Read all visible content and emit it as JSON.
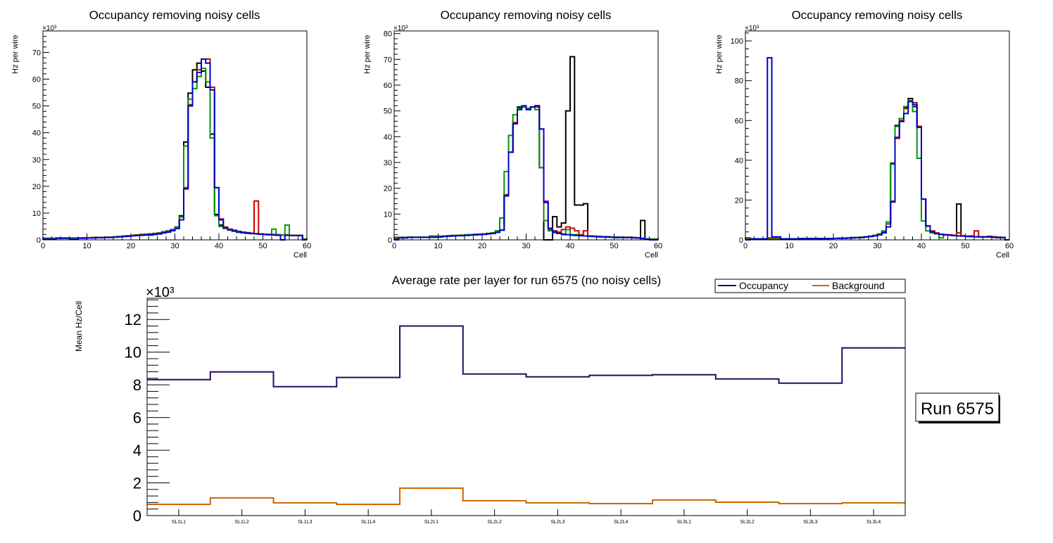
{
  "chart_data": [
    {
      "type": "line",
      "style": "step-histogram",
      "title": "Occupancy removing noisy cells",
      "xlabel": "Cell",
      "ylabel": "Hz per wire",
      "y_multiplier": "×10³",
      "xlim": [
        0,
        60
      ],
      "ylim": [
        0,
        78
      ],
      "x_ticks": [
        "0",
        "10",
        "20",
        "30",
        "40",
        "50",
        "60"
      ],
      "y_ticks": [
        "0",
        "10",
        "20",
        "30",
        "40",
        "50",
        "60",
        "70"
      ],
      "bin_width": 1,
      "series": [
        {
          "name": "black",
          "color": "#000000",
          "values": [
            0.6,
            0.6,
            0.6,
            0.7,
            0.7,
            0.7,
            0.7,
            0.7,
            0.7,
            0.8,
            0.8,
            0.8,
            0.9,
            0.9,
            1.0,
            1.0,
            1.1,
            1.2,
            1.4,
            1.5,
            1.7,
            1.8,
            2.0,
            2.1,
            2.2,
            2.4,
            2.6,
            3.0,
            3.3,
            3.8,
            4.8,
            9.0,
            36.5,
            54.8,
            63.5,
            66.0,
            63.0,
            57.0,
            39.5,
            9.5,
            5.5,
            4.5,
            3.8,
            3.4,
            3.1,
            2.8,
            2.6,
            2.4,
            2.3,
            2.2,
            2.1,
            2.0,
            1.9,
            1.9,
            1.8,
            1.8,
            1.7,
            1.7,
            1.7,
            0.3
          ]
        },
        {
          "name": "red",
          "color": "#cc0000",
          "values": [
            0.6,
            0.6,
            0.6,
            0.7,
            0.7,
            0.7,
            0.7,
            0.7,
            0.7,
            0.8,
            0.8,
            0.9,
            0.9,
            0.9,
            1.0,
            1.0,
            1.1,
            1.2,
            1.3,
            1.5,
            1.7,
            1.8,
            1.9,
            2.1,
            2.2,
            2.3,
            2.6,
            2.9,
            3.2,
            3.6,
            4.5,
            7.5,
            19.5,
            50.5,
            59.0,
            63.5,
            67.5,
            67.5,
            57.0,
            19.5,
            7.8,
            4.8,
            4.0,
            3.6,
            3.2,
            2.9,
            2.7,
            2.5,
            14.5,
            2.2,
            2.1,
            2.0,
            2.0,
            1.9,
            1.8,
            1.8,
            1.7,
            1.7,
            1.7,
            0.3
          ]
        },
        {
          "name": "green",
          "color": "#009900",
          "values": [
            0.5,
            0.5,
            0.6,
            0.6,
            0.6,
            0.6,
            0.7,
            0.7,
            0.7,
            0.7,
            0.8,
            0.8,
            0.8,
            0.9,
            0.9,
            1.0,
            1.1,
            1.2,
            1.3,
            1.4,
            1.6,
            1.7,
            1.8,
            1.9,
            1.7,
            2.2,
            2.5,
            2.8,
            3.1,
            3.6,
            4.8,
            8.5,
            35.0,
            52.5,
            56.5,
            61.0,
            64.0,
            59.0,
            38.0,
            9.0,
            5.0,
            4.2,
            3.6,
            3.2,
            2.8,
            2.6,
            2.4,
            2.3,
            2.2,
            2.1,
            2.0,
            1.9,
            4.0,
            1.8,
            1.8,
            5.5,
            1.6,
            1.6,
            1.6,
            0.3
          ]
        },
        {
          "name": "blue",
          "color": "#0000cc",
          "values": [
            0.3,
            0.3,
            0.3,
            0.6,
            0.6,
            0.6,
            0.3,
            0.3,
            0.6,
            0.6,
            0.7,
            0.7,
            0.8,
            0.8,
            0.9,
            0.9,
            1.0,
            1.1,
            1.2,
            1.3,
            1.5,
            1.6,
            1.7,
            1.8,
            1.9,
            2.0,
            2.2,
            2.6,
            2.9,
            3.4,
            4.2,
            7.5,
            19.0,
            50.0,
            59.0,
            62.5,
            67.5,
            66.0,
            56.0,
            19.5,
            7.5,
            4.5,
            3.8,
            3.4,
            3.0,
            2.8,
            2.6,
            2.4,
            2.3,
            2.1,
            2.0,
            1.9,
            1.8,
            1.7,
            0.0,
            1.7,
            1.6,
            1.6,
            1.6,
            0.0
          ]
        }
      ]
    },
    {
      "type": "line",
      "style": "step-histogram",
      "title": "Occupancy removing noisy cells",
      "xlabel": "Cell",
      "ylabel": "Hz per wire",
      "y_multiplier": "×10³",
      "xlim": [
        0,
        60
      ],
      "ylim": [
        0,
        81
      ],
      "x_ticks": [
        "0",
        "10",
        "20",
        "30",
        "40",
        "50",
        "60"
      ],
      "y_ticks": [
        "0",
        "10",
        "20",
        "30",
        "40",
        "50",
        "60",
        "70",
        "80"
      ],
      "bin_width": 1,
      "series": [
        {
          "name": "black",
          "color": "#000000",
          "values": [
            0.5,
            0.8,
            0.8,
            1.0,
            1.0,
            1.0,
            1.0,
            1.0,
            1.1,
            1.2,
            1.4,
            1.5,
            1.6,
            1.7,
            1.7,
            1.8,
            1.9,
            2.0,
            2.1,
            2.2,
            2.3,
            2.5,
            2.7,
            3.0,
            3.8,
            17.5,
            34.0,
            45.0,
            51.5,
            51.5,
            50.5,
            51.5,
            52.0,
            28.0,
            0.0,
            0.0,
            9.0,
            5.0,
            6.5,
            50.0,
            71.0,
            13.5,
            13.5,
            14.0,
            1.5,
            1.4,
            1.3,
            1.2,
            1.2,
            1.1,
            1.0,
            1.0,
            1.0,
            1.0,
            0.9,
            0.8,
            7.5,
            0.3,
            0.3,
            0.3
          ]
        },
        {
          "name": "red",
          "color": "#cc0000",
          "values": [
            0.5,
            0.8,
            0.8,
            1.0,
            1.0,
            1.0,
            1.0,
            1.0,
            1.1,
            1.2,
            1.4,
            1.5,
            1.5,
            1.6,
            1.7,
            1.7,
            1.9,
            2.0,
            2.1,
            2.2,
            2.3,
            2.5,
            2.7,
            3.0,
            3.8,
            17.5,
            34.0,
            45.5,
            51.0,
            51.5,
            50.5,
            51.5,
            51.5,
            43.0,
            15.0,
            4.0,
            3.5,
            3.0,
            4.0,
            5.0,
            4.5,
            3.5,
            2.0,
            3.5,
            1.5,
            1.4,
            1.3,
            1.2,
            1.1,
            1.1,
            1.0,
            1.0,
            1.0,
            1.0,
            0.9,
            0.8,
            0.6,
            0.3,
            0.3,
            0.3
          ]
        },
        {
          "name": "green",
          "color": "#009900",
          "values": [
            1.0,
            1.0,
            1.0,
            1.0,
            1.0,
            1.0,
            1.0,
            1.0,
            1.5,
            1.5,
            1.5,
            1.5,
            1.5,
            1.6,
            1.7,
            1.7,
            2.0,
            2.0,
            2.0,
            2.2,
            2.2,
            2.4,
            2.7,
            3.5,
            8.5,
            26.5,
            40.5,
            48.5,
            51.0,
            51.5,
            51.0,
            51.5,
            50.5,
            28.0,
            7.5,
            3.5,
            2.8,
            2.5,
            2.0,
            4.0,
            2.0,
            2.0,
            1.7,
            1.5,
            1.4,
            1.3,
            1.2,
            1.1,
            1.1,
            1.0,
            0.8,
            0.9,
            0.9,
            0.9,
            0.8,
            0.7,
            0.5,
            0.3,
            0.3,
            0.3
          ]
        },
        {
          "name": "blue",
          "color": "#0000cc",
          "values": [
            0.0,
            0.8,
            0.8,
            1.0,
            1.0,
            1.0,
            1.0,
            1.0,
            1.0,
            1.0,
            1.1,
            1.3,
            1.4,
            1.5,
            1.6,
            1.6,
            1.7,
            1.8,
            1.9,
            2.0,
            2.1,
            2.3,
            2.5,
            2.9,
            3.8,
            17.0,
            34.0,
            45.0,
            50.5,
            52.0,
            50.5,
            51.5,
            52.0,
            43.0,
            14.5,
            4.5,
            3.0,
            2.5,
            2.2,
            2.0,
            1.8,
            1.7,
            1.6,
            1.5,
            1.4,
            1.3,
            1.2,
            1.2,
            1.1,
            1.0,
            1.0,
            1.0,
            0.9,
            0.9,
            0.8,
            0.7,
            0.5,
            0.3,
            0.0,
            0.0
          ]
        }
      ]
    },
    {
      "type": "line",
      "style": "step-histogram",
      "title": "Occupancy removing noisy cells",
      "xlabel": "Cell",
      "ylabel": "Hz per wire",
      "y_multiplier": "×10³",
      "xlim": [
        0,
        60
      ],
      "ylim": [
        0,
        105
      ],
      "x_ticks": [
        "0",
        "10",
        "20",
        "30",
        "40",
        "50",
        "60"
      ],
      "y_ticks": [
        "0",
        "20",
        "40",
        "60",
        "80",
        "100"
      ],
      "bin_width": 1,
      "series": [
        {
          "name": "black",
          "color": "#000000",
          "values": [
            1.0,
            0.5,
            0.5,
            0.5,
            0.5,
            0.5,
            0.5,
            0.5,
            0.5,
            0.5,
            0.5,
            0.5,
            0.6,
            0.6,
            0.6,
            0.6,
            0.6,
            0.6,
            0.6,
            0.7,
            0.7,
            0.8,
            0.8,
            0.9,
            1.0,
            1.1,
            1.2,
            1.4,
            1.8,
            2.2,
            2.8,
            4.0,
            9.0,
            38.5,
            57.5,
            61.0,
            66.5,
            71.0,
            67.0,
            57.0,
            20.5,
            7.0,
            4.0,
            3.2,
            2.8,
            2.5,
            2.3,
            2.2,
            18.0,
            2.0,
            1.8,
            1.7,
            1.6,
            1.5,
            1.5,
            1.5,
            1.4,
            1.3,
            1.2,
            0.0
          ]
        },
        {
          "name": "red",
          "color": "#cc0000",
          "values": [
            0.5,
            0.5,
            0.2,
            0.2,
            0.5,
            0.5,
            0.5,
            0.5,
            0.5,
            0.5,
            0.5,
            0.5,
            0.6,
            0.6,
            0.6,
            0.6,
            0.6,
            0.6,
            0.6,
            0.7,
            0.7,
            0.8,
            0.8,
            0.9,
            1.0,
            1.1,
            1.2,
            1.4,
            1.7,
            2.1,
            2.6,
            3.8,
            8.0,
            19.5,
            51.0,
            60.0,
            66.0,
            70.0,
            69.0,
            57.0,
            20.5,
            7.0,
            4.5,
            3.5,
            2.8,
            2.6,
            2.5,
            2.2,
            3.5,
            2.0,
            1.8,
            2.0,
            4.5,
            1.5,
            1.5,
            1.8,
            1.6,
            1.3,
            1.2,
            0.0
          ]
        },
        {
          "name": "green",
          "color": "#009900",
          "values": [
            1.0,
            0.5,
            0.5,
            0.5,
            0.5,
            1.0,
            1.0,
            1.0,
            0.5,
            0.5,
            0.5,
            0.5,
            0.6,
            0.6,
            0.6,
            0.6,
            0.6,
            0.6,
            0.6,
            0.7,
            0.7,
            0.8,
            0.8,
            1.0,
            1.2,
            1.2,
            1.4,
            1.6,
            1.9,
            2.3,
            3.0,
            4.5,
            9.0,
            38.0,
            57.0,
            61.0,
            67.0,
            70.0,
            64.5,
            41.0,
            9.5,
            4.5,
            3.5,
            3.0,
            1.0,
            2.5,
            2.3,
            2.2,
            2.0,
            2.0,
            1.8,
            1.7,
            1.6,
            1.5,
            1.5,
            1.4,
            1.3,
            1.0,
            1.0,
            0.0
          ]
        },
        {
          "name": "blue",
          "color": "#0000cc",
          "values": [
            0.0,
            0.5,
            0.5,
            0.5,
            0.5,
            91.5,
            1.5,
            1.5,
            0.5,
            0.5,
            0.5,
            0.5,
            0.5,
            0.6,
            0.6,
            0.6,
            0.6,
            0.6,
            0.6,
            0.6,
            0.7,
            0.8,
            0.8,
            0.9,
            1.0,
            1.1,
            1.2,
            1.4,
            1.7,
            2.0,
            2.5,
            3.5,
            6.5,
            19.0,
            51.5,
            59.5,
            63.5,
            69.5,
            68.0,
            56.5,
            20.5,
            7.0,
            4.0,
            3.2,
            2.8,
            2.5,
            2.3,
            2.2,
            2.0,
            1.9,
            1.7,
            1.6,
            1.5,
            1.5,
            1.4,
            1.4,
            1.3,
            1.2,
            1.2,
            0.0
          ]
        }
      ]
    },
    {
      "type": "line",
      "style": "step-histogram",
      "title": "Average rate per layer for run 6575 (no noisy cells)",
      "xlabel": "",
      "ylabel": "Mean Hz/Cell",
      "y_multiplier": "×10³",
      "ylim": [
        0,
        13.3
      ],
      "y_ticks": [
        "0",
        "2",
        "4",
        "6",
        "8",
        "10",
        "12"
      ],
      "categories": [
        "SL1L1",
        "SL1L2",
        "SL1L3",
        "SL1L4",
        "SL2L1",
        "SL2L2",
        "SL2L3",
        "SL2L4",
        "SL3L1",
        "SL3L2",
        "SL3L3",
        "SL3L4"
      ],
      "legend": {
        "placement": "top-right",
        "entries": [
          "Occupancy",
          "Background"
        ]
      },
      "annotation": "Run 6575",
      "series": [
        {
          "name": "Occupancy",
          "color": "#2a0a5e",
          "values": [
            8.32,
            8.79,
            7.89,
            8.45,
            11.6,
            8.66,
            8.49,
            8.58,
            8.62,
            8.36,
            8.1,
            10.26
          ]
        },
        {
          "name": "Background",
          "color": "#cc6600",
          "values": [
            0.69,
            1.08,
            0.78,
            0.69,
            1.68,
            0.91,
            0.78,
            0.73,
            0.95,
            0.82,
            0.73,
            0.78
          ]
        }
      ]
    }
  ]
}
